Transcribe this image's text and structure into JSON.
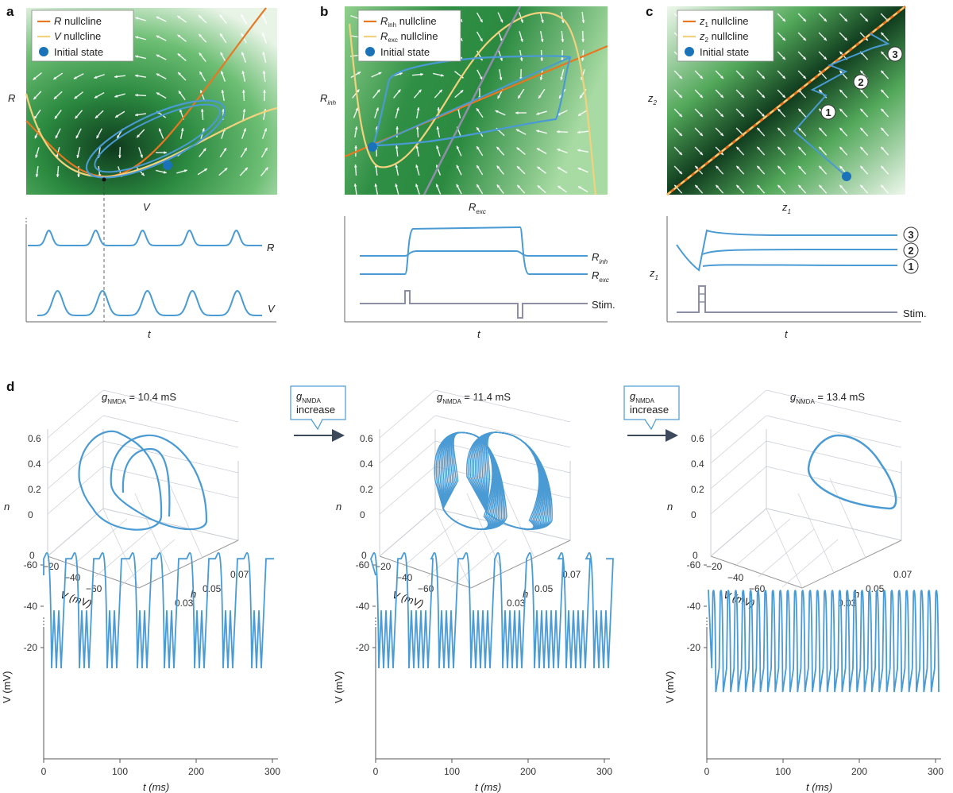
{
  "panels": {
    "a": {
      "letter": "a",
      "legend": [
        "R nullcline",
        "V nullcline",
        "Initial state"
      ],
      "legend_var": [
        "R",
        "V"
      ],
      "legend_rest": [
        " nullcline",
        " nullcline"
      ],
      "xlabel": "V",
      "ylabel": "R",
      "trace_labels": [
        "R",
        "V"
      ],
      "time_label": "t"
    },
    "b": {
      "letter": "b",
      "legend_var": [
        "R",
        "R"
      ],
      "legend_sub": [
        "inh",
        "exc"
      ],
      "legend_rest": [
        " nullcline",
        " nullcline"
      ],
      "legend_init": "Initial state",
      "xlabel": "R",
      "xlabel_sub": "exc",
      "ylabel": "R",
      "ylabel_sub": "inh",
      "trace_labels": [
        {
          "v": "R",
          "s": "inh"
        },
        {
          "v": "R",
          "s": "exc"
        }
      ],
      "stim": "Stim.",
      "time_label": "t"
    },
    "c": {
      "letter": "c",
      "legend_var": [
        "z",
        "z"
      ],
      "legend_sub": [
        "1",
        "2"
      ],
      "legend_rest": [
        " nullcline",
        " nullcline"
      ],
      "legend_init": "Initial state",
      "xlabel": "z",
      "xlabel_sub": "1",
      "ylabel": "z",
      "ylabel_sub": "2",
      "markers": [
        "1",
        "2",
        "3"
      ],
      "trace_ylabel": "z",
      "trace_ylabel_sub": "1",
      "stim": "Stim.",
      "time_label": "t"
    },
    "d": {
      "letter": "d",
      "conditions": [
        {
          "g_var": "g",
          "g_sub": "NMDA",
          "g_value": " = 10.4 mS"
        },
        {
          "g_var": "g",
          "g_sub": "NMDA",
          "g_value": " = 11.4 mS"
        },
        {
          "g_var": "g",
          "g_sub": "NMDA",
          "g_value": " = 13.4 mS"
        }
      ],
      "arrow_label": {
        "var": "g",
        "sub": "NMDA",
        "word": "increase"
      },
      "axis3d": {
        "n_ticks": [
          "0.6",
          "0.4",
          "0.2",
          "0"
        ],
        "v_ticks": [
          "0",
          "−20",
          "−40",
          "−60"
        ],
        "h_ticks": [
          "0.07",
          "0.05",
          "0.03"
        ],
        "n_label": "n",
        "v_label": "V (mV)",
        "h_label": "h"
      },
      "trace_axes": {
        "y_ticks": [
          "-20",
          "-40",
          "-60"
        ],
        "x_ticks": [
          "0",
          "100",
          "200",
          "300"
        ],
        "ylabel": "V (mV)",
        "xlabel": "t (ms)"
      }
    }
  },
  "colors": {
    "trajectory": "#4a9ad4",
    "r_nullcline": "#e87722",
    "v_nullcline": "#f2d27e",
    "initial_state": "#1a73b8",
    "stim": "#8c8fa6",
    "field_dark": "#0f3a1d",
    "field_mid": "#3a9a4b"
  }
}
